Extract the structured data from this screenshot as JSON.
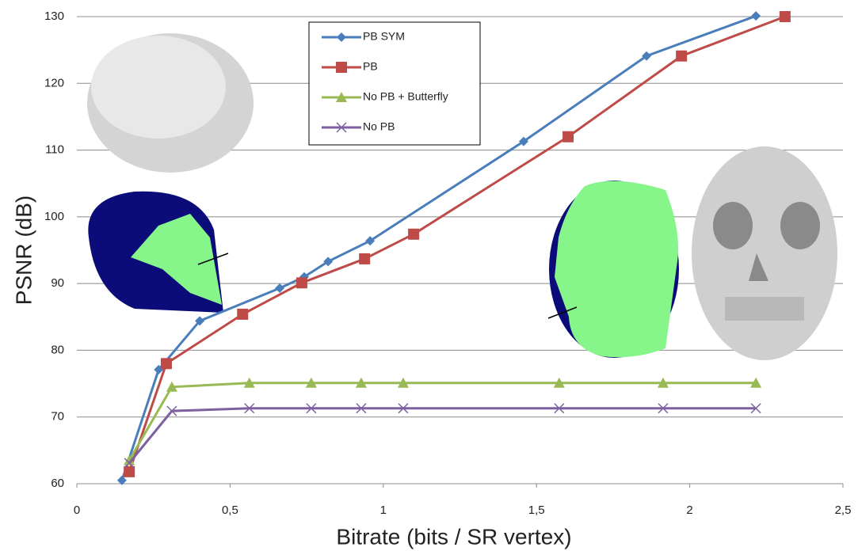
{
  "chart_data": {
    "type": "line",
    "xlabel": "Bitrate (bits / SR vertex)",
    "ylabel": "PSNR (dB)",
    "xlim": [
      0,
      2.5
    ],
    "xticks": [
      0,
      {
        "value": 0.5,
        "label": "0,5"
      },
      1,
      {
        "value": 1.5,
        "label": "1,5"
      },
      2,
      {
        "value": 2.5,
        "label": "2,5"
      }
    ],
    "ylim": [
      60,
      130
    ],
    "yticks": [
      60,
      70,
      80,
      90,
      100,
      110,
      120,
      130
    ],
    "grid": true,
    "legend": "top",
    "series": [
      {
        "name": "PB SYM",
        "color": "#4a7ebb",
        "marker": "diamond",
        "x": [
          0.147,
          0.267,
          0.401,
          0.662,
          0.742,
          0.82,
          0.957,
          1.458,
          1.859,
          2.216
        ],
        "values": [
          60.5,
          77.1,
          84.4,
          89.3,
          91,
          93.3,
          96.4,
          111.3,
          124.1,
          130.1
        ]
      },
      {
        "name": "PB",
        "color": "#be4b48",
        "marker": "square",
        "x": [
          0.171,
          0.292,
          0.541,
          0.734,
          0.939,
          1.099,
          1.603,
          1.973,
          2.311
        ],
        "values": [
          61.8,
          78,
          85.4,
          90.1,
          93.7,
          97.4,
          112,
          124.1,
          130
        ]
      },
      {
        "name": "No PB + Butterfly",
        "color": "#98b954",
        "marker": "triangle",
        "x": [
          0.171,
          0.31,
          0.563,
          0.765,
          0.928,
          1.065,
          1.574,
          1.913,
          2.216
        ],
        "values": [
          63.5,
          74.5,
          75.1,
          75.1,
          75.1,
          75.1,
          75.1,
          75.1,
          75.1
        ]
      },
      {
        "name": "No PB",
        "color": "#7d60a0",
        "marker": "x",
        "x": [
          0.171,
          0.31,
          0.563,
          0.765,
          0.928,
          1.065,
          1.574,
          1.913,
          2.216
        ],
        "values": [
          63.1,
          70.9,
          71.3,
          71.3,
          71.3,
          71.3,
          71.3,
          71.3,
          71.3
        ]
      }
    ]
  }
}
